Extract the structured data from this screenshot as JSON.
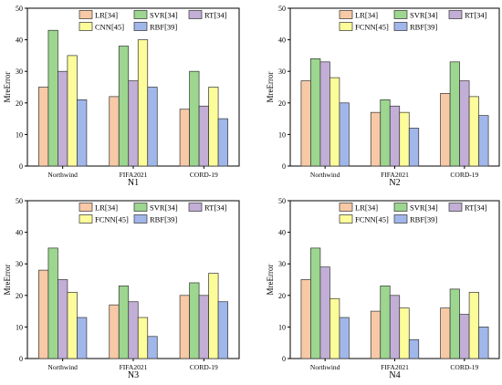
{
  "series_colors": [
    "#f7c9a6",
    "#9cd68f",
    "#c2aed6",
    "#fdfc9a",
    "#a1b6ea"
  ],
  "chart_data": [
    {
      "type": "bar",
      "title": "N1",
      "xlabel": "",
      "ylabel": "MreError",
      "ylim": [
        0,
        50
      ],
      "yticks": [
        "0",
        "10",
        "20",
        "30",
        "40",
        "50"
      ],
      "categories": [
        "Northwind",
        "FIFA2021",
        "CORD-19"
      ],
      "legend_position": "top-right",
      "series": [
        {
          "name": "LR[34]",
          "values": [
            25,
            22,
            18
          ]
        },
        {
          "name": "SVR[34]",
          "values": [
            43,
            38,
            30
          ]
        },
        {
          "name": "RT[34]",
          "values": [
            30,
            27,
            19
          ]
        },
        {
          "name": "CNN[45]",
          "values": [
            35,
            40,
            25
          ]
        },
        {
          "name": "RBF[39]",
          "values": [
            21,
            25,
            15
          ]
        }
      ]
    },
    {
      "type": "bar",
      "title": "N2",
      "xlabel": "",
      "ylabel": "MreError",
      "ylim": [
        0,
        50
      ],
      "yticks": [
        "0",
        "10",
        "20",
        "30",
        "40",
        "50"
      ],
      "categories": [
        "Northwind",
        "FIFA2021",
        "CORD-19"
      ],
      "legend_position": "top-right",
      "series": [
        {
          "name": "LR[34]",
          "values": [
            27,
            17,
            23
          ]
        },
        {
          "name": "SVR[34]",
          "values": [
            34,
            21,
            33
          ]
        },
        {
          "name": "RT[34]",
          "values": [
            33,
            19,
            27
          ]
        },
        {
          "name": "FCNN[45]",
          "values": [
            28,
            17,
            22
          ]
        },
        {
          "name": "RBF[39]",
          "values": [
            20,
            12,
            16
          ]
        }
      ]
    },
    {
      "type": "bar",
      "title": "N3",
      "xlabel": "",
      "ylabel": "MreError",
      "ylim": [
        0,
        50
      ],
      "yticks": [
        "0",
        "10",
        "20",
        "30",
        "40",
        "50"
      ],
      "categories": [
        "Northwind",
        "FIFA2021",
        "CORD-19"
      ],
      "legend_position": "top-right",
      "series": [
        {
          "name": "LR[34]",
          "values": [
            28,
            17,
            20
          ]
        },
        {
          "name": "SVR[34]",
          "values": [
            35,
            23,
            24
          ]
        },
        {
          "name": "RT[34]",
          "values": [
            25,
            18,
            20
          ]
        },
        {
          "name": "FCNN[45]",
          "values": [
            21,
            13,
            27
          ]
        },
        {
          "name": "RBF[39]",
          "values": [
            13,
            7,
            18
          ]
        }
      ]
    },
    {
      "type": "bar",
      "title": "N4",
      "xlabel": "",
      "ylabel": "MreError",
      "ylim": [
        0,
        50
      ],
      "yticks": [
        "0",
        "10",
        "20",
        "30",
        "40",
        "50"
      ],
      "categories": [
        "Northwind",
        "FIFA2021",
        "CORD-19"
      ],
      "legend_position": "top-right",
      "series": [
        {
          "name": "LR[34]",
          "values": [
            25,
            15,
            16
          ]
        },
        {
          "name": "SVR[34]",
          "values": [
            35,
            23,
            22
          ]
        },
        {
          "name": "RT[34]",
          "values": [
            29,
            20,
            14
          ]
        },
        {
          "name": "FCNN[45]",
          "values": [
            19,
            16,
            21
          ]
        },
        {
          "name": "RBF[39]",
          "values": [
            13,
            6,
            10
          ]
        }
      ]
    }
  ]
}
